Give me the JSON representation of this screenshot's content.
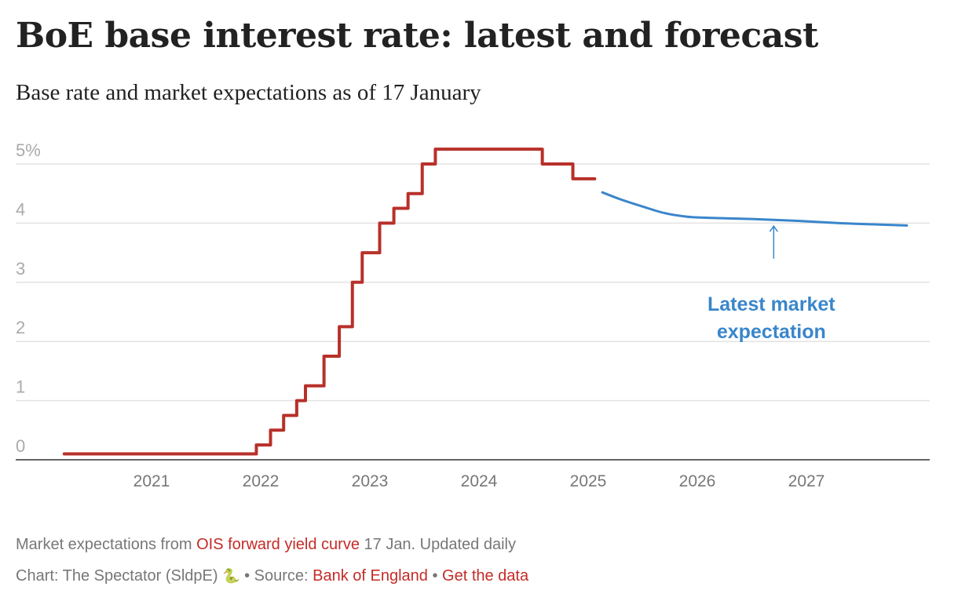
{
  "header": {
    "title": "BoE base interest rate: latest and forecast",
    "subtitle": "Base rate and market expectations as of 17 January"
  },
  "chart_data": {
    "type": "line",
    "title": "BoE base interest rate: latest and forecast",
    "subtitle": "Base rate and market expectations as of 17 January",
    "xlabel": "",
    "ylabel": "",
    "xlim": [
      2020.0,
      2028.0
    ],
    "ylim": [
      0,
      5.3
    ],
    "grid": true,
    "y_ticks": [
      {
        "value": 0,
        "label": "0"
      },
      {
        "value": 1,
        "label": "1"
      },
      {
        "value": 2,
        "label": "2"
      },
      {
        "value": 3,
        "label": "3"
      },
      {
        "value": 4,
        "label": "4"
      },
      {
        "value": 5,
        "label": "5%"
      }
    ],
    "x_ticks": [
      {
        "value": 2021,
        "label": "2021"
      },
      {
        "value": 2022,
        "label": "2022"
      },
      {
        "value": 2023,
        "label": "2023"
      },
      {
        "value": 2024,
        "label": "2024"
      },
      {
        "value": 2025,
        "label": "2025"
      },
      {
        "value": 2026,
        "label": "2026"
      },
      {
        "value": 2027,
        "label": "2027"
      }
    ],
    "series": [
      {
        "name": "Base rate",
        "style": "step",
        "color": "#b8302a",
        "points": [
          [
            2020.2,
            0.1
          ],
          [
            2021.96,
            0.25
          ],
          [
            2022.09,
            0.5
          ],
          [
            2022.21,
            0.75
          ],
          [
            2022.33,
            1.0
          ],
          [
            2022.41,
            1.25
          ],
          [
            2022.58,
            1.75
          ],
          [
            2022.72,
            2.25
          ],
          [
            2022.84,
            3.0
          ],
          [
            2022.93,
            3.5
          ],
          [
            2023.09,
            4.0
          ],
          [
            2023.22,
            4.25
          ],
          [
            2023.35,
            4.5
          ],
          [
            2023.48,
            5.0
          ],
          [
            2023.6,
            5.25
          ],
          [
            2024.58,
            5.0
          ],
          [
            2024.86,
            4.75
          ],
          [
            2025.06,
            4.75
          ]
        ]
      },
      {
        "name": "Latest market expectation",
        "style": "smooth",
        "color": "#3986cb",
        "points": [
          [
            2025.13,
            4.52
          ],
          [
            2025.3,
            4.4
          ],
          [
            2025.5,
            4.28
          ],
          [
            2025.7,
            4.17
          ],
          [
            2025.9,
            4.11
          ],
          [
            2026.1,
            4.09
          ],
          [
            2026.5,
            4.07
          ],
          [
            2026.9,
            4.04
          ],
          [
            2027.3,
            4.0
          ],
          [
            2027.6,
            3.98
          ],
          [
            2027.92,
            3.96
          ]
        ]
      }
    ],
    "annotations": [
      {
        "text_line1": "Latest market",
        "text_line2": "expectation",
        "x": 2026.7,
        "y_text": 2.6,
        "arrow_from": 3.4,
        "arrow_to": 3.95,
        "color": "#3986cb"
      }
    ]
  },
  "footer": {
    "note_prefix": "Market expectations from ",
    "note_link": "OIS forward yield curve",
    "note_suffix": " 17 Jan. Updated daily",
    "credit_prefix": "Chart: The Spectator (SldpE) ",
    "credit_icon": "🐍",
    "separator": " • ",
    "source_label": "Source: ",
    "source_link": "Bank of England",
    "data_link": "Get the data"
  }
}
